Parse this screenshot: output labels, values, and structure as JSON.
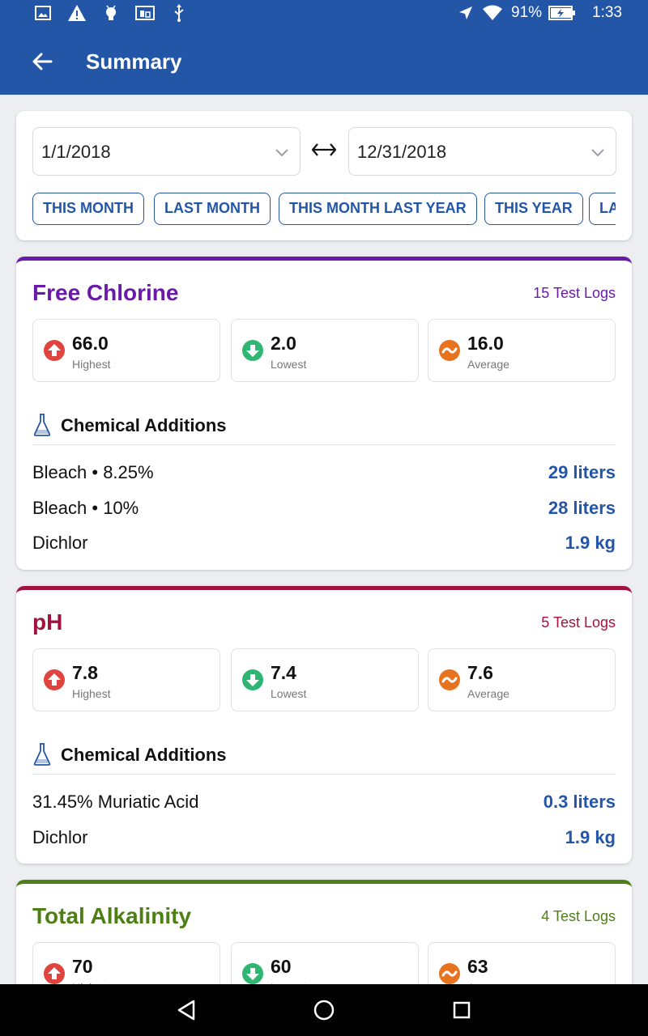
{
  "status_bar": {
    "battery": "91%",
    "time": "1:33",
    "icons": [
      "image-icon",
      "warning-icon",
      "android-icon",
      "cast-icon",
      "usb-icon",
      "location-icon",
      "wifi-icon",
      "battery-charging-icon"
    ]
  },
  "header": {
    "title": "Summary",
    "back_icon": "arrow-back-icon"
  },
  "date_range": {
    "start": "1/1/2018",
    "end": "12/31/2018",
    "separator_icon": "double-arrow-icon",
    "presets": [
      "THIS MONTH",
      "LAST MONTH",
      "THIS MONTH LAST YEAR",
      "THIS YEAR",
      "LA"
    ]
  },
  "labels": {
    "highest": "Highest",
    "lowest": "Lowest",
    "average": "Average",
    "chemical_additions": "Chemical Additions"
  },
  "params": [
    {
      "name": "Free Chlorine",
      "color": "#6a1aa8",
      "test_logs": "15 Test Logs",
      "highest": "66.0",
      "lowest": "2.0",
      "average": "16.0",
      "chemicals": [
        {
          "name": "Bleach • 8.25%",
          "amount": "29 liters"
        },
        {
          "name": "Bleach • 10%",
          "amount": "28 liters"
        },
        {
          "name": "Dichlor",
          "amount": "1.9 kg"
        }
      ]
    },
    {
      "name": "pH",
      "color": "#a3123d",
      "test_logs": "5 Test Logs",
      "highest": "7.8",
      "lowest": "7.4",
      "average": "7.6",
      "chemicals": [
        {
          "name": "31.45% Muriatic Acid",
          "amount": "0.3 liters"
        },
        {
          "name": "Dichlor",
          "amount": "1.9 kg"
        }
      ]
    },
    {
      "name": "Total Alkalinity",
      "color": "#4d7f15",
      "test_logs": "4 Test Logs",
      "highest": "70",
      "lowest": "60",
      "average": "63"
    }
  ],
  "colors": {
    "primary": "#2456a8",
    "up": "#e0443e",
    "down": "#2fb673",
    "avg": "#e8731f"
  },
  "nav": [
    "back-triangle-icon",
    "home-circle-icon",
    "recents-square-icon"
  ]
}
